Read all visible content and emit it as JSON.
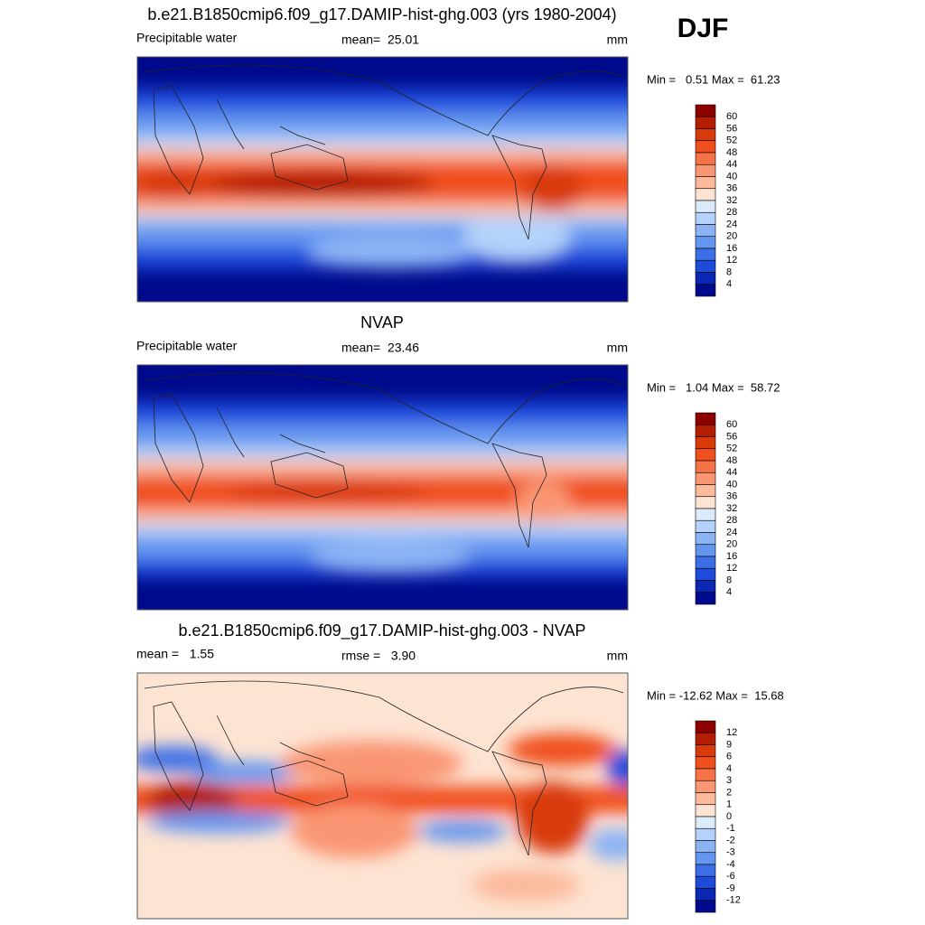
{
  "season": "DJF",
  "panels": [
    {
      "title": "b.e21.B1850cmip6.f09_g17.DAMIP-hist-ghg.003 (yrs 1980-2004)",
      "left": "Precipitable water",
      "center": "mean=  25.01",
      "right": "mm",
      "minmax": "Min =   0.51 Max =  61.23",
      "colorbar": {
        "labels": [
          "60",
          "56",
          "52",
          "48",
          "44",
          "40",
          "36",
          "32",
          "28",
          "24",
          "20",
          "16",
          "12",
          "8",
          "4"
        ],
        "colors": [
          "#8c0000",
          "#b41e00",
          "#d93a0a",
          "#f0501e",
          "#f57346",
          "#fa9673",
          "#fcb99b",
          "#fde3d2",
          "#dcebfa",
          "#b4d2fa",
          "#8cb4f5",
          "#6496f0",
          "#3c6ee6",
          "#1e4bdc",
          "#0a28b4",
          "#000a8c"
        ]
      }
    },
    {
      "title": "NVAP",
      "left": "Precipitable water",
      "center": "mean=  23.46",
      "right": "mm",
      "minmax": "Min =   1.04 Max =  58.72",
      "colorbar": {
        "labels": [
          "60",
          "56",
          "52",
          "48",
          "44",
          "40",
          "36",
          "32",
          "28",
          "24",
          "20",
          "16",
          "12",
          "8",
          "4"
        ],
        "colors": [
          "#8c0000",
          "#b41e00",
          "#d93a0a",
          "#f0501e",
          "#f57346",
          "#fa9673",
          "#fcb99b",
          "#fde3d2",
          "#dcebfa",
          "#b4d2fa",
          "#8cb4f5",
          "#6496f0",
          "#3c6ee6",
          "#1e4bdc",
          "#0a28b4",
          "#000a8c"
        ]
      }
    },
    {
      "title": "b.e21.B1850cmip6.f09_g17.DAMIP-hist-ghg.003 - NVAP",
      "left": "mean =   1.55",
      "center": "rmse =   3.90",
      "right": "mm",
      "minmax": "Min = -12.62 Max =  15.68",
      "colorbar": {
        "labels": [
          "12",
          "9",
          "6",
          "4",
          "3",
          "2",
          "1",
          "0",
          "-1",
          "-2",
          "-3",
          "-4",
          "-6",
          "-9",
          "-12"
        ],
        "colors": [
          "#8c0000",
          "#b41e00",
          "#d93a0a",
          "#f0501e",
          "#f57346",
          "#fa9673",
          "#fcb99b",
          "#fde3d2",
          "#dcebfa",
          "#b4d2fa",
          "#8cb4f5",
          "#6496f0",
          "#3c6ee6",
          "#1e4bdc",
          "#0a28b4",
          "#000a8c"
        ]
      }
    }
  ]
}
